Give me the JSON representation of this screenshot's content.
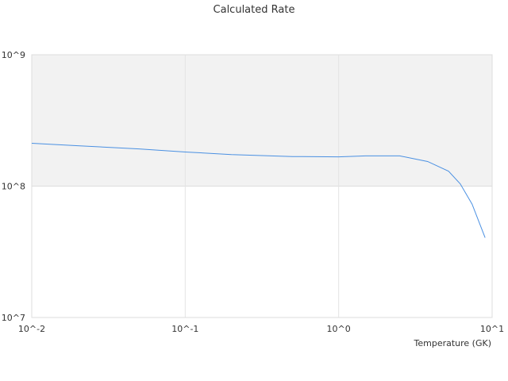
{
  "chart_data": {
    "type": "line",
    "title": "Calculated Rate",
    "x_label": "Temperature (GK)",
    "x": [
      0.01,
      0.02,
      0.05,
      0.1,
      0.2,
      0.5,
      1,
      1.5,
      2.5,
      3.8,
      5.2,
      6.2,
      7.4,
      9
    ],
    "series": [
      {
        "color": "#4a90e2",
        "values": [
          212000000,
          203000000,
          192000000,
          182000000,
          174000000,
          168000000,
          167000000,
          170000000,
          170000000,
          154000000,
          130000000,
          104000000,
          73000000,
          40500000
        ]
      }
    ],
    "xlim": [
      0.01,
      10
    ],
    "ylim": [
      10000000,
      1000000000
    ],
    "log_x": true,
    "log_y": true,
    "xticks": [
      {
        "value": 0.01,
        "label": "10^-2"
      },
      {
        "value": 0.1,
        "label": "10^-1"
      },
      {
        "value": 1,
        "label": "10^0"
      },
      {
        "value": 10,
        "label": "10^1"
      }
    ],
    "yticks": [
      {
        "value": 10000000,
        "label": "10^7"
      },
      {
        "value": 100000000,
        "label": "10^8"
      },
      {
        "value": 1000000000,
        "label": "10^9"
      }
    ],
    "grid": true
  }
}
